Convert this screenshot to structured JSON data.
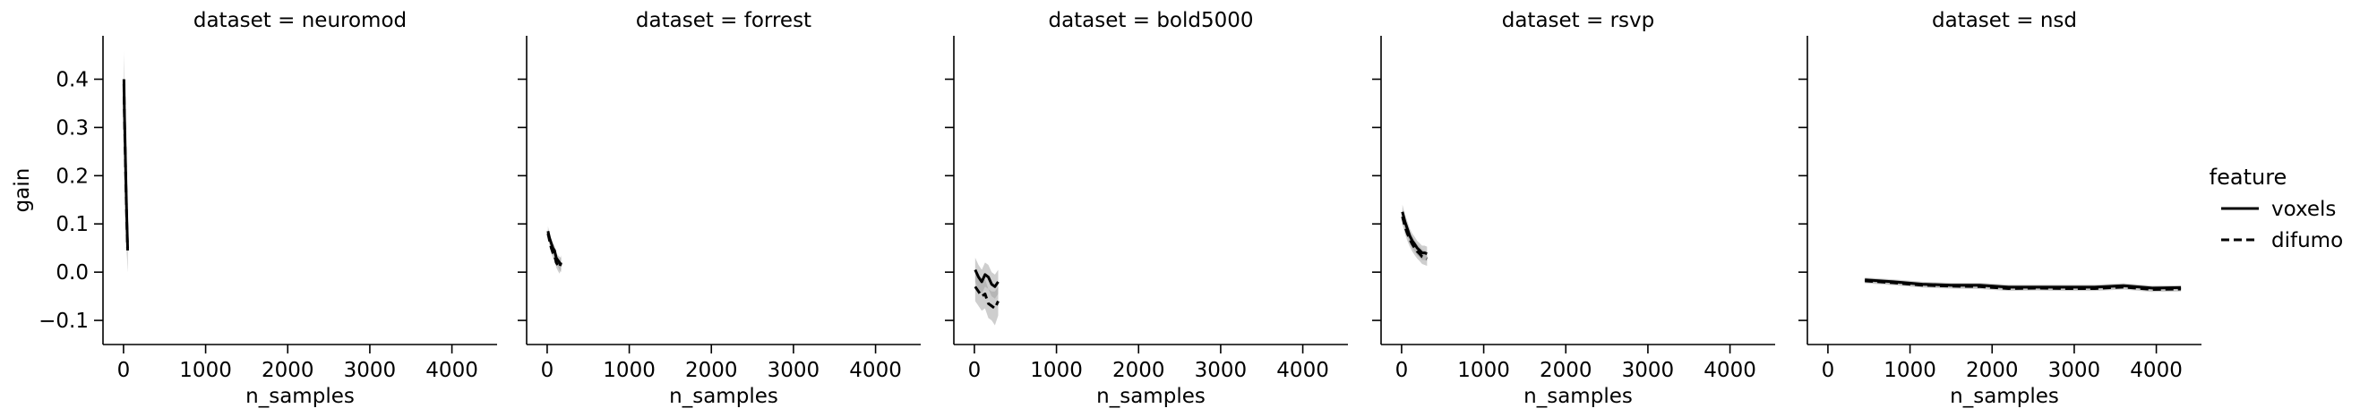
{
  "chart_data": {
    "type": "line",
    "facet_variable": "dataset",
    "panel_titles": [
      "dataset = neuromod",
      "dataset = forrest",
      "dataset = bold5000",
      "dataset = rsvp",
      "dataset = nsd"
    ],
    "xlabel": "n_samples",
    "ylabel": "gain",
    "xlim": [
      -250,
      4550
    ],
    "ylim": [
      -0.15,
      0.49
    ],
    "xticks": [
      0,
      1000,
      2000,
      3000,
      4000
    ],
    "xtick_labels": [
      "0",
      "1000",
      "2000",
      "3000",
      "4000"
    ],
    "yticks": [
      -0.1,
      0.0,
      0.1,
      0.2,
      0.3,
      0.4
    ],
    "ytick_labels": [
      "−0.1",
      "0.0",
      "0.1",
      "0.2",
      "0.3",
      "0.4"
    ],
    "grid": false,
    "legend": {
      "title": "feature",
      "placement": "right",
      "entries": [
        {
          "label": "voxels",
          "style": "solid"
        },
        {
          "label": "difumo",
          "style": "dashed"
        }
      ]
    },
    "line_color": "#000000",
    "band_color": "#9e9e9e",
    "panels": [
      {
        "dataset": "neuromod",
        "series": [
          {
            "name": "voxels",
            "x": [
              5,
              10,
              20,
              30,
              40,
              50
            ],
            "y": [
              0.4,
              0.34,
              0.26,
              0.18,
              0.11,
              0.05
            ],
            "lower": [
              0.34,
              0.28,
              0.2,
              0.12,
              0.05,
              0.0
            ],
            "upper": [
              0.46,
              0.4,
              0.32,
              0.24,
              0.17,
              0.1
            ]
          },
          {
            "name": "difumo",
            "x": [
              5,
              10,
              20,
              30,
              40,
              50
            ],
            "y": [
              0.39,
              0.33,
              0.25,
              0.17,
              0.1,
              0.045
            ],
            "lower": [
              0.33,
              0.27,
              0.19,
              0.11,
              0.04,
              0.0
            ],
            "upper": [
              0.45,
              0.39,
              0.31,
              0.23,
              0.16,
              0.09
            ]
          }
        ]
      },
      {
        "dataset": "forrest",
        "series": [
          {
            "name": "voxels",
            "x": [
              10,
              30,
              50,
              70,
              90,
              110,
              130,
              150,
              170
            ],
            "y": [
              0.085,
              0.07,
              0.06,
              0.05,
              0.045,
              0.03,
              0.025,
              0.02,
              0.015
            ],
            "lower": [
              0.075,
              0.06,
              0.05,
              0.04,
              0.035,
              0.02,
              0.012,
              0.005,
              0.0
            ],
            "upper": [
              0.095,
              0.08,
              0.07,
              0.06,
              0.055,
              0.04,
              0.035,
              0.032,
              0.03
            ]
          },
          {
            "name": "difumo",
            "x": [
              10,
              30,
              50,
              70,
              90,
              110,
              130,
              150,
              170
            ],
            "y": [
              0.08,
              0.065,
              0.05,
              0.04,
              0.035,
              0.02,
              0.015,
              0.01,
              0.02
            ],
            "lower": [
              0.07,
              0.055,
              0.04,
              0.03,
              0.025,
              0.01,
              0.003,
              -0.003,
              0.005
            ],
            "upper": [
              0.09,
              0.075,
              0.06,
              0.05,
              0.045,
              0.03,
              0.027,
              0.023,
              0.035
            ]
          }
        ]
      },
      {
        "dataset": "bold5000",
        "series": [
          {
            "name": "voxels",
            "x": [
              10,
              50,
              90,
              130,
              170,
              210,
              250,
              290
            ],
            "y": [
              0.005,
              -0.01,
              -0.02,
              -0.005,
              -0.01,
              -0.025,
              -0.03,
              -0.02
            ],
            "lower": [
              -0.02,
              -0.035,
              -0.045,
              -0.03,
              -0.035,
              -0.05,
              -0.055,
              -0.045
            ],
            "upper": [
              0.03,
              0.015,
              0.005,
              0.02,
              0.015,
              0.0,
              -0.005,
              0.005
            ]
          },
          {
            "name": "difumo",
            "x": [
              10,
              50,
              90,
              130,
              170,
              210,
              250,
              290
            ],
            "y": [
              -0.03,
              -0.04,
              -0.05,
              -0.045,
              -0.065,
              -0.07,
              -0.075,
              -0.06
            ],
            "lower": [
              -0.06,
              -0.07,
              -0.08,
              -0.075,
              -0.095,
              -0.1,
              -0.11,
              -0.09
            ],
            "upper": [
              0.0,
              -0.01,
              -0.02,
              -0.015,
              -0.035,
              -0.04,
              -0.04,
              -0.03
            ]
          }
        ]
      },
      {
        "dataset": "rsvp",
        "series": [
          {
            "name": "voxels",
            "x": [
              10,
              40,
              70,
              100,
              130,
              160,
              190,
              220,
              250,
              280,
              310
            ],
            "y": [
              0.125,
              0.105,
              0.09,
              0.075,
              0.065,
              0.058,
              0.05,
              0.045,
              0.04,
              0.04,
              0.038
            ],
            "lower": [
              0.11,
              0.09,
              0.075,
              0.06,
              0.05,
              0.043,
              0.035,
              0.03,
              0.025,
              0.025,
              0.023
            ],
            "upper": [
              0.14,
              0.12,
              0.105,
              0.09,
              0.08,
              0.073,
              0.065,
              0.06,
              0.055,
              0.055,
              0.053
            ]
          },
          {
            "name": "difumo",
            "x": [
              10,
              40,
              70,
              100,
              130,
              160,
              190,
              220,
              250,
              280,
              310
            ],
            "y": [
              0.115,
              0.095,
              0.08,
              0.068,
              0.058,
              0.05,
              0.043,
              0.038,
              0.032,
              0.03,
              0.028
            ],
            "lower": [
              0.1,
              0.08,
              0.065,
              0.053,
              0.043,
              0.035,
              0.028,
              0.023,
              0.017,
              0.015,
              0.013
            ],
            "upper": [
              0.13,
              0.11,
              0.095,
              0.083,
              0.073,
              0.065,
              0.058,
              0.053,
              0.047,
              0.045,
              0.043
            ]
          }
        ]
      },
      {
        "dataset": "nsd",
        "series": [
          {
            "name": "voxels",
            "x": [
              450,
              800,
              1150,
              1500,
              1850,
              2200,
              2550,
              2900,
              3250,
              3600,
              3950,
              4300
            ],
            "y": [
              -0.016,
              -0.02,
              -0.025,
              -0.027,
              -0.027,
              -0.031,
              -0.031,
              -0.031,
              -0.031,
              -0.028,
              -0.033,
              -0.032
            ],
            "lower": [
              -0.021,
              -0.025,
              -0.03,
              -0.032,
              -0.032,
              -0.036,
              -0.036,
              -0.036,
              -0.036,
              -0.033,
              -0.038,
              -0.037
            ],
            "upper": [
              -0.011,
              -0.015,
              -0.02,
              -0.022,
              -0.022,
              -0.026,
              -0.026,
              -0.026,
              -0.026,
              -0.023,
              -0.028,
              -0.027
            ]
          },
          {
            "name": "difumo",
            "x": [
              450,
              800,
              1150,
              1500,
              1850,
              2200,
              2550,
              2900,
              3250,
              3600,
              3950,
              4300
            ],
            "y": [
              -0.018,
              -0.022,
              -0.027,
              -0.029,
              -0.03,
              -0.034,
              -0.033,
              -0.034,
              -0.034,
              -0.031,
              -0.036,
              -0.035
            ],
            "lower": [
              -0.023,
              -0.027,
              -0.032,
              -0.034,
              -0.035,
              -0.039,
              -0.038,
              -0.039,
              -0.039,
              -0.036,
              -0.041,
              -0.04
            ],
            "upper": [
              -0.013,
              -0.017,
              -0.022,
              -0.024,
              -0.025,
              -0.029,
              -0.028,
              -0.029,
              -0.029,
              -0.026,
              -0.031,
              -0.03
            ]
          }
        ]
      }
    ]
  }
}
